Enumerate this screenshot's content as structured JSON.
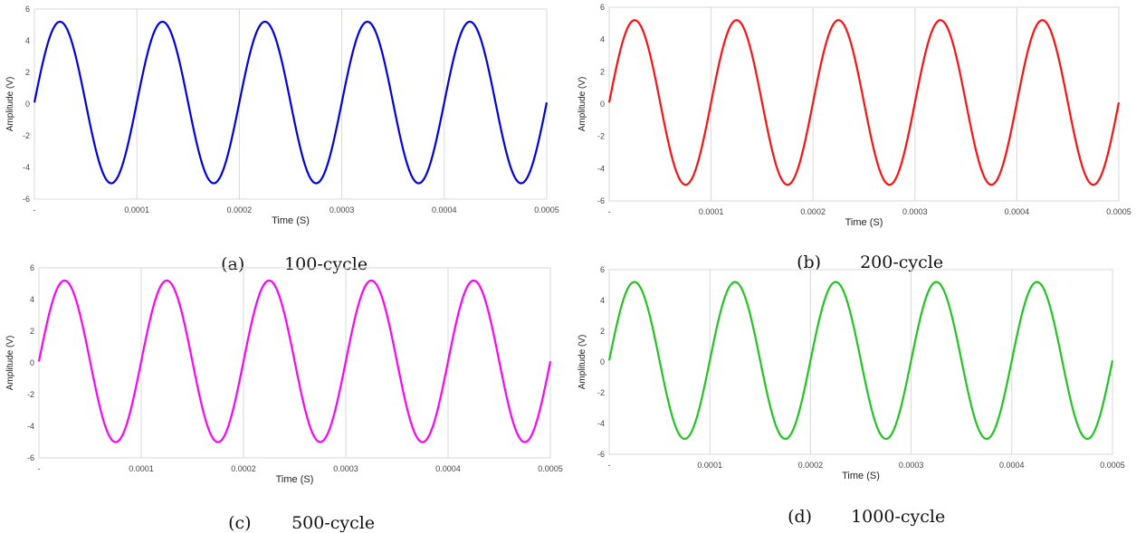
{
  "charts": [
    {
      "caption_letter": "(a)",
      "caption_text": "100-cycle",
      "color": "#0000e6",
      "chart_data": {
        "type": "line",
        "xlabel": "Time (S)",
        "ylabel": "Amplitude (V)",
        "xlim": [
          0,
          0.0005
        ],
        "ylim": [
          -6,
          6
        ],
        "x_ticks": [
          "-",
          "0.0001",
          "0.0002",
          "0.0003",
          "0.0004",
          "0.0005"
        ],
        "y_ticks": [
          "6",
          "4",
          "2",
          "0",
          "-2",
          "-4",
          "-6"
        ],
        "grid": "vertical",
        "series": [
          {
            "waveform": "sine",
            "frequency_hz": 10000,
            "peak_v": 5.2,
            "trough_v": -5.0,
            "x_start": 0,
            "x_end": 0.0005
          }
        ]
      }
    },
    {
      "caption_letter": "(b)",
      "caption_text": "200-cycle",
      "color": "#ff1010",
      "chart_data": {
        "type": "line",
        "xlabel": "Time (S)",
        "ylabel": "Amplitude (V)",
        "xlim": [
          0,
          0.0005
        ],
        "ylim": [
          -6,
          6
        ],
        "x_ticks": [
          "-",
          "0.0001",
          "0.0002",
          "0.0003",
          "0.0004",
          "0.0005"
        ],
        "y_ticks": [
          "6",
          "4",
          "2",
          "0",
          "-2",
          "-4",
          "-6"
        ],
        "grid": "vertical",
        "series": [
          {
            "waveform": "sine",
            "frequency_hz": 10000,
            "peak_v": 5.2,
            "trough_v": -5.0,
            "x_start": 0,
            "x_end": 0.0005
          }
        ]
      }
    },
    {
      "caption_letter": "(c)",
      "caption_text": "500-cycle",
      "color": "#ff00ff",
      "chart_data": {
        "type": "line",
        "xlabel": "Time (S)",
        "ylabel": "Amplitude (V)",
        "xlim": [
          0,
          0.0005
        ],
        "ylim": [
          -6,
          6
        ],
        "x_ticks": [
          "-",
          "0.0001",
          "0.0002",
          "0.0003",
          "0.0004",
          "0.0005"
        ],
        "y_ticks": [
          "6",
          "4",
          "2",
          "0",
          "-2",
          "-4",
          "-6"
        ],
        "grid": "vertical",
        "series": [
          {
            "waveform": "sine",
            "frequency_hz": 10000,
            "peak_v": 5.2,
            "trough_v": -5.0,
            "x_start": 0,
            "x_end": 0.0005
          }
        ]
      }
    },
    {
      "caption_letter": "(d)",
      "caption_text": "1000-cycle",
      "color": "#22c422",
      "chart_data": {
        "type": "line",
        "xlabel": "Time (S)",
        "ylabel": "Amplitude (V)",
        "xlim": [
          0,
          0.0005
        ],
        "ylim": [
          -6,
          6
        ],
        "x_ticks": [
          "-",
          "0.0001",
          "0.0002",
          "0.0003",
          "0.0004",
          "0.0005"
        ],
        "y_ticks": [
          "6",
          "4",
          "2",
          "0",
          "-2",
          "-4",
          "-6"
        ],
        "grid": "vertical",
        "series": [
          {
            "waveform": "sine",
            "frequency_hz": 10000,
            "peak_v": 5.2,
            "trough_v": -5.0,
            "x_start": 0,
            "x_end": 0.0005
          }
        ]
      }
    }
  ]
}
